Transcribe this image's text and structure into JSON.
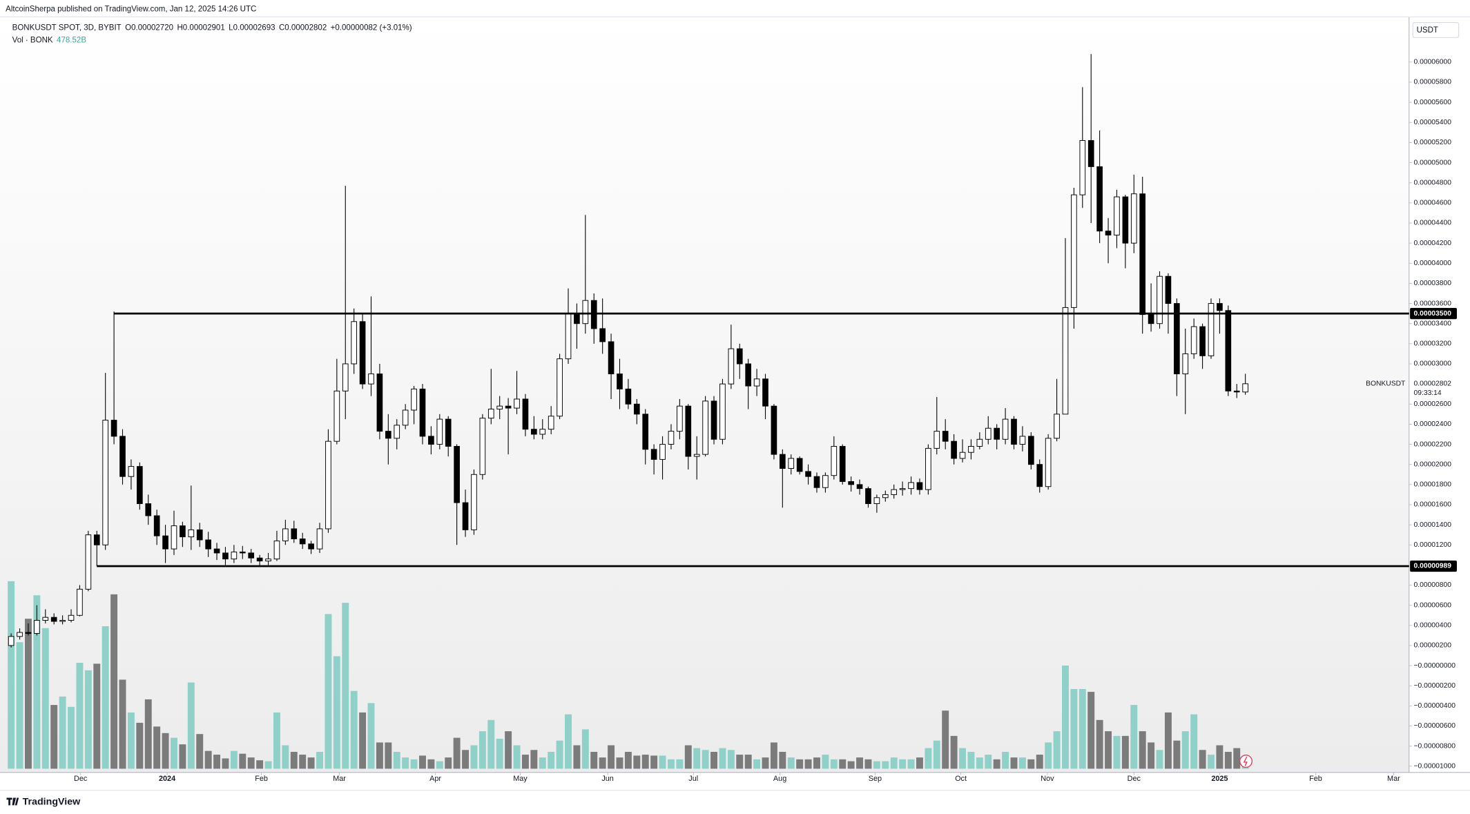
{
  "header": {
    "published": "AltcoinSherpa published on TradingView.com, Jan 12, 2025 14:26 UTC"
  },
  "chart_data": {
    "type": "candlestick",
    "symbol": "BONKUSDT SPOT, 3D, BYBIT",
    "ohlc_legend": [
      {
        "key": "O",
        "value": "0.00002720"
      },
      {
        "key": "H",
        "value": "0.00002901"
      },
      {
        "key": "L",
        "value": "0.00002693"
      },
      {
        "key": "C",
        "value": "0.00002802"
      }
    ],
    "change": "+0.00000082 (+3.01%)",
    "volume_legend": {
      "name": "Vol · BONK",
      "value_label": "478.52B"
    },
    "currency": "USDT",
    "last_price": {
      "symbol": "BONKUSDT",
      "label": "0.00002802",
      "countdown": "09:33:14"
    },
    "colors": {
      "up_body": "#ffffff",
      "down_body": "#000000",
      "wick": "#000000",
      "volume_up": "#8fd0c8",
      "volume_down": "#7b7b7b",
      "legend_value": "#3aa79d"
    },
    "xlim": [
      -1.3,
      163.1
    ],
    "xticks": [
      {
        "value": 8.1,
        "label": "Dec"
      },
      {
        "value": 18.2,
        "label": "2024"
      },
      {
        "value": 29.2,
        "label": "Feb"
      },
      {
        "value": 38.3,
        "label": "Mar"
      },
      {
        "value": 49.5,
        "label": "Apr"
      },
      {
        "value": 59.4,
        "label": "May"
      },
      {
        "value": 69.6,
        "label": "Jun"
      },
      {
        "value": 79.6,
        "label": "Jul"
      },
      {
        "value": 89.7,
        "label": "Aug"
      },
      {
        "value": 100.8,
        "label": "Sep"
      },
      {
        "value": 110.8,
        "label": "Oct"
      },
      {
        "value": 120.9,
        "label": "Nov"
      },
      {
        "value": 131.0,
        "label": "Dec"
      },
      {
        "value": 141.0,
        "label": "2025"
      },
      {
        "value": 152.2,
        "label": "Feb"
      },
      {
        "value": 161.3,
        "label": "Mar"
      }
    ],
    "ylim": [
      -1.062e-05,
      6.449e-05
    ],
    "yticks": [
      {
        "value": 6e-05,
        "label": "0.00006000"
      },
      {
        "value": 5.8e-05,
        "label": "0.00005800"
      },
      {
        "value": 5.6e-05,
        "label": "0.00005600"
      },
      {
        "value": 5.4e-05,
        "label": "0.00005400"
      },
      {
        "value": 5.2e-05,
        "label": "0.00005200"
      },
      {
        "value": 5e-05,
        "label": "0.00005000"
      },
      {
        "value": 4.8e-05,
        "label": "0.00004800"
      },
      {
        "value": 4.6e-05,
        "label": "0.00004600"
      },
      {
        "value": 4.4e-05,
        "label": "0.00004400"
      },
      {
        "value": 4.2e-05,
        "label": "0.00004200"
      },
      {
        "value": 4e-05,
        "label": "0.00004000"
      },
      {
        "value": 3.8e-05,
        "label": "0.00003800"
      },
      {
        "value": 3.6e-05,
        "label": "0.00003600"
      },
      {
        "value": 3.4e-05,
        "label": "0.00003400"
      },
      {
        "value": 3.2e-05,
        "label": "0.00003200"
      },
      {
        "value": 3e-05,
        "label": "0.00003000"
      },
      {
        "value": 2.6e-05,
        "label": "0.00002600"
      },
      {
        "value": 2.4e-05,
        "label": "0.00002400"
      },
      {
        "value": 2.2e-05,
        "label": "0.00002200"
      },
      {
        "value": 2e-05,
        "label": "0.00002000"
      },
      {
        "value": 1.8e-05,
        "label": "0.00001800"
      },
      {
        "value": 1.6e-05,
        "label": "0.00001600"
      },
      {
        "value": 1.4e-05,
        "label": "0.00001400"
      },
      {
        "value": 1.2e-05,
        "label": "0.00001200"
      },
      {
        "value": 8e-06,
        "label": "0.00000800"
      },
      {
        "value": 6e-06,
        "label": "0.00000600"
      },
      {
        "value": 4e-06,
        "label": "0.00000400"
      },
      {
        "value": 2e-06,
        "label": "0.00000200"
      },
      {
        "value": 0,
        "label": "−0.00000000"
      },
      {
        "value": -2e-06,
        "label": "−0.00000200"
      },
      {
        "value": -4e-06,
        "label": "−0.00000400"
      },
      {
        "value": -6e-06,
        "label": "−0.00000600"
      },
      {
        "value": -8e-06,
        "label": "−0.00000800"
      },
      {
        "value": -1e-05,
        "label": "−0.00001000"
      }
    ],
    "levels": [
      {
        "value": 3.5e-05,
        "label": "0.00003500",
        "start": 12
      },
      {
        "value": 9.89e-06,
        "label": "0.00000989",
        "start": 10
      }
    ],
    "open": [
      2e-06,
      2.9e-06,
      3.3e-06,
      3.2e-06,
      4.5e-06,
      4.8e-06,
      4.4e-06,
      4.5e-06,
      5e-06,
      7.6e-06,
      1.3e-05,
      1.2e-05,
      2.44e-05,
      2.28e-05,
      1.88e-05,
      1.98e-05,
      1.61e-05,
      1.49e-05,
      1.29e-05,
      1.16e-05,
      1.39e-05,
      1.28e-05,
      1.35e-05,
      1.25e-05,
      1.16e-05,
      1.12e-05,
      1.06e-05,
      1.13e-05,
      1.12e-05,
      1.07e-05,
      1.04e-05,
      1.06e-05,
      1.24e-05,
      1.36e-05,
      1.26e-05,
      1.21e-05,
      1.16e-05,
      1.36e-05,
      2.23e-05,
      2.73e-05,
      3e-05,
      3.42e-05,
      2.8e-05,
      2.9e-05,
      2.33e-05,
      2.26e-05,
      2.39e-05,
      2.54e-05,
      2.75e-05,
      2.28e-05,
      2.2e-05,
      2.45e-05,
      2.18e-05,
      1.62e-05,
      1.35e-05,
      1.9e-05,
      2.46e-05,
      2.55e-05,
      2.58e-05,
      2.56e-05,
      2.65e-05,
      2.35e-05,
      2.3e-05,
      2.35e-05,
      2.48e-05,
      3.05e-05,
      3.5e-05,
      3.4e-05,
      3.63e-05,
      3.35e-05,
      3.22e-05,
      2.9e-05,
      2.75e-05,
      2.6e-05,
      2.5e-05,
      2.15e-05,
      2.05e-05,
      2.2e-05,
      2.33e-05,
      2.58e-05,
      2.08e-05,
      2.1e-05,
      2.63e-05,
      2.25e-05,
      2.8e-05,
      3.15e-05,
      3e-05,
      2.78e-05,
      2.85e-05,
      2.58e-05,
      2.1e-05,
      1.96e-05,
      2.06e-05,
      1.93e-05,
      1.88e-05,
      1.77e-05,
      1.89e-05,
      2.18e-05,
      1.83e-05,
      1.8e-05,
      1.76e-05,
      1.61e-05,
      1.67e-05,
      1.7e-05,
      1.75e-05,
      1.76e-05,
      1.82e-05,
      1.75e-05,
      2.16e-05,
      2.33e-05,
      2.23e-05,
      2.06e-05,
      2.12e-05,
      2.18e-05,
      2.25e-05,
      2.36e-05,
      2.25e-05,
      2.45e-05,
      2.2e-05,
      2.28e-05,
      2e-05,
      1.78e-05,
      2.26e-05,
      2.5e-05,
      3.56e-05,
      4.68e-05,
      5.22e-05,
      4.96e-05,
      4.32e-05,
      4.28e-05,
      4.66e-05,
      4.2e-05,
      4.69e-05,
      3.49e-05,
      3.4e-05,
      3.87e-05,
      3.6e-05,
      2.9e-05,
      3.1e-05,
      3.37e-05,
      3.08e-05,
      3.6e-05,
      3.53e-05,
      2.73e-05,
      2.72e-05
    ],
    "high": [
      3.2e-06,
      3.7e-06,
      4.2e-06,
      6e-06,
      5.6e-06,
      5.2e-06,
      5e-06,
      5.6e-06,
      8e-06,
      1.34e-05,
      1.34e-05,
      2.91e-05,
      3.52e-05,
      2.35e-05,
      2.05e-05,
      2.02e-05,
      1.7e-05,
      1.55e-05,
      1.4e-05,
      1.54e-05,
      1.43e-05,
      1.79e-05,
      1.42e-05,
      1.33e-05,
      1.22e-05,
      1.18e-05,
      1.2e-05,
      1.19e-05,
      1.16e-05,
      1.1e-05,
      1.12e-05,
      1.34e-05,
      1.45e-05,
      1.44e-05,
      1.32e-05,
      1.24e-05,
      1.42e-05,
      2.35e-05,
      3.05e-05,
      4.77e-05,
      3.55e-05,
      3.5e-05,
      3.67e-05,
      3e-05,
      2.5e-05,
      2.45e-05,
      2.6e-05,
      2.78e-05,
      2.8e-05,
      2.38e-05,
      2.5e-05,
      2.48e-05,
      2.2e-05,
      1.75e-05,
      1.95e-05,
      2.5e-05,
      2.95e-05,
      2.68e-05,
      2.66e-05,
      2.93e-05,
      2.7e-05,
      2.48e-05,
      2.45e-05,
      2.58e-05,
      3.1e-05,
      3.75e-05,
      3.6e-05,
      4.48e-05,
      3.7e-05,
      3.65e-05,
      3.3e-05,
      3.05e-05,
      2.85e-05,
      2.65e-05,
      2.55e-05,
      2.2e-05,
      2.28e-05,
      2.4e-05,
      2.65e-05,
      2.6e-05,
      2.28e-05,
      2.68e-05,
      2.68e-05,
      2.85e-05,
      3.39e-05,
      3.2e-05,
      3.05e-05,
      2.95e-05,
      2.9e-05,
      2.6e-05,
      2.15e-05,
      2.1e-05,
      2.08e-05,
      2e-05,
      1.92e-05,
      1.92e-05,
      2.28e-05,
      2.2e-05,
      1.88e-05,
      1.85e-05,
      1.78e-05,
      1.7e-05,
      1.74e-05,
      1.8e-05,
      1.83e-05,
      1.88e-05,
      1.86e-05,
      2.2e-05,
      2.67e-05,
      2.45e-05,
      2.3e-05,
      2.25e-05,
      2.25e-05,
      2.32e-05,
      2.48e-05,
      2.4e-05,
      2.56e-05,
      2.48e-05,
      2.38e-05,
      2.32e-05,
      2.05e-05,
      2.3e-05,
      2.85e-05,
      4.25e-05,
      4.75e-05,
      5.75e-05,
      6.08e-05,
      5.32e-05,
      4.45e-05,
      4.73e-05,
      4.68e-05,
      4.88e-05,
      4.86e-05,
      3.8e-05,
      3.92e-05,
      3.9e-05,
      3.65e-05,
      3.35e-05,
      3.45e-05,
      3.4e-05,
      3.65e-05,
      3.65e-05,
      3.58e-05,
      2.8e-05,
      2.901e-05
    ],
    "low": [
      1.8e-06,
      2.6e-06,
      3e-06,
      3e-06,
      4.2e-06,
      4.1e-06,
      4.1e-06,
      4.3e-06,
      4.9e-06,
      7.4e-06,
      9.9e-06,
      1.15e-05,
      2.2e-05,
      1.8e-05,
      1.75e-05,
      1.55e-05,
      1.4e-05,
      1.2e-05,
      1.02e-05,
      1.1e-05,
      1.18e-05,
      1.15e-05,
      1.18e-05,
      1.08e-05,
      1.05e-05,
      1e-05,
      1.02e-05,
      1.06e-05,
      1.02e-05,
      9.9e-06,
      1e-05,
      1.04e-05,
      1.2e-05,
      1.22e-05,
      1.16e-05,
      1.11e-05,
      1.12e-05,
      1.32e-05,
      2.2e-05,
      2.45e-05,
      2.9e-05,
      2.75e-05,
      2.68e-05,
      2.25e-05,
      2e-05,
      2.15e-05,
      2.35e-05,
      2.4e-05,
      2.2e-05,
      2.1e-05,
      2.15e-05,
      2.08e-05,
      1.2e-05,
      1.28e-05,
      1.3e-05,
      1.85e-05,
      2.4e-05,
      2.45e-05,
      2.1e-05,
      2.5e-05,
      2.28e-05,
      2.25e-05,
      2.25e-05,
      2.3e-05,
      2.45e-05,
      3e-05,
      3.15e-05,
      3.3e-05,
      3.2e-05,
      3.1e-05,
      2.65e-05,
      2.55e-05,
      2.55e-05,
      2.4e-05,
      2e-05,
      1.9e-05,
      1.85e-05,
      2.15e-05,
      2.25e-05,
      1.95e-05,
      1.85e-05,
      2.08e-05,
      2.2e-05,
      2.2e-05,
      2.75e-05,
      2.85e-05,
      2.55e-05,
      2.68e-05,
      2.45e-05,
      2.05e-05,
      1.57e-05,
      1.9e-05,
      1.9e-05,
      1.8e-05,
      1.72e-05,
      1.72e-05,
      1.85e-05,
      1.8e-05,
      1.73e-05,
      1.7e-05,
      1.57e-05,
      1.52e-05,
      1.63e-05,
      1.66e-05,
      1.69e-05,
      1.7e-05,
      1.7e-05,
      1.7e-05,
      2.1e-05,
      2.15e-05,
      2e-05,
      2.02e-05,
      2.05e-05,
      2.15e-05,
      2.2e-05,
      2.15e-05,
      2.2e-05,
      2.15e-05,
      2.13e-05,
      1.95e-05,
      1.72e-05,
      1.75e-05,
      2.23e-05,
      2.5e-05,
      3.35e-05,
      4.55e-05,
      4.4e-05,
      4.2e-05,
      4e-05,
      4.15e-05,
      3.95e-05,
      4.1e-05,
      3.3e-05,
      3.32e-05,
      3.35e-05,
      3.3e-05,
      2.68e-05,
      2.5e-05,
      3.05e-05,
      2.95e-05,
      3.05e-05,
      3.3e-05,
      2.68e-05,
      2.66e-05,
      2.693e-05
    ],
    "close": [
      2.9e-06,
      3.3e-06,
      3.2e-06,
      4.5e-06,
      4.8e-06,
      4.4e-06,
      4.5e-06,
      5e-06,
      7.6e-06,
      1.3e-05,
      1.2e-05,
      2.44e-05,
      2.28e-05,
      1.88e-05,
      1.98e-05,
      1.61e-05,
      1.49e-05,
      1.29e-05,
      1.16e-05,
      1.39e-05,
      1.28e-05,
      1.35e-05,
      1.25e-05,
      1.16e-05,
      1.12e-05,
      1.06e-05,
      1.13e-05,
      1.12e-05,
      1.07e-05,
      1.04e-05,
      1.06e-05,
      1.24e-05,
      1.36e-05,
      1.26e-05,
      1.21e-05,
      1.16e-05,
      1.36e-05,
      2.23e-05,
      2.73e-05,
      3e-05,
      3.42e-05,
      2.8e-05,
      2.9e-05,
      2.33e-05,
      2.26e-05,
      2.39e-05,
      2.54e-05,
      2.75e-05,
      2.28e-05,
      2.2e-05,
      2.45e-05,
      2.18e-05,
      1.62e-05,
      1.35e-05,
      1.9e-05,
      2.46e-05,
      2.55e-05,
      2.58e-05,
      2.56e-05,
      2.65e-05,
      2.35e-05,
      2.3e-05,
      2.35e-05,
      2.48e-05,
      3.05e-05,
      3.5e-05,
      3.4e-05,
      3.63e-05,
      3.35e-05,
      3.22e-05,
      2.9e-05,
      2.75e-05,
      2.6e-05,
      2.5e-05,
      2.15e-05,
      2.05e-05,
      2.2e-05,
      2.33e-05,
      2.58e-05,
      2.08e-05,
      2.1e-05,
      2.63e-05,
      2.25e-05,
      2.8e-05,
      3.15e-05,
      3e-05,
      2.78e-05,
      2.85e-05,
      2.58e-05,
      2.1e-05,
      1.96e-05,
      2.06e-05,
      1.93e-05,
      1.88e-05,
      1.77e-05,
      1.89e-05,
      2.18e-05,
      1.83e-05,
      1.8e-05,
      1.76e-05,
      1.61e-05,
      1.67e-05,
      1.7e-05,
      1.75e-05,
      1.76e-05,
      1.82e-05,
      1.75e-05,
      2.16e-05,
      2.33e-05,
      2.23e-05,
      2.06e-05,
      2.12e-05,
      2.18e-05,
      2.25e-05,
      2.36e-05,
      2.25e-05,
      2.45e-05,
      2.2e-05,
      2.28e-05,
      2e-05,
      1.78e-05,
      2.26e-05,
      2.5e-05,
      3.56e-05,
      4.68e-05,
      5.22e-05,
      4.96e-05,
      4.32e-05,
      4.28e-05,
      4.66e-05,
      4.2e-05,
      4.69e-05,
      3.49e-05,
      3.4e-05,
      3.87e-05,
      3.6e-05,
      2.9e-05,
      3.1e-05,
      3.37e-05,
      3.08e-05,
      3.6e-05,
      3.53e-05,
      2.73e-05,
      2.72e-05,
      2.802e-05
    ],
    "volume_ylim": [
      0,
      21500000000000.0
    ],
    "volume": [
      20000000000000.0,
      13500000000000.0,
      16000000000000.0,
      18500000000000.0,
      15000000000000.0,
      6800000000000.0,
      7700000000000.0,
      6600000000000.0,
      11300000000000.0,
      10500000000000.0,
      11200000000000.0,
      15200000000000.0,
      18600000000000.0,
      9500000000000.0,
      6000000000000.0,
      4900000000000.0,
      7400000000000.0,
      4500000000000.0,
      3800000000000.0,
      3300000000000.0,
      2600000000000.0,
      9200000000000.0,
      3700000000000.0,
      1900000000000.0,
      1500000000000.0,
      1100000000000.0,
      1900000000000.0,
      1600000000000.0,
      1200000000000.0,
      900000000000.0,
      800000000000.0,
      6000000000000.0,
      2500000000000.0,
      1800000000000.0,
      1500000000000.0,
      1200000000000.0,
      1800000000000.0,
      16500000000000.0,
      12000000000000.0,
      17700000000000.0,
      8300000000000.0,
      6000000000000.0,
      7000000000000.0,
      2800000000000.0,
      2800000000000.0,
      1800000000000.0,
      1200000000000.0,
      1000000000000.0,
      1400000000000.0,
      1000000000000.0,
      800000000000.0,
      1200000000000.0,
      3300000000000.0,
      2000000000000.0,
      2500000000000.0,
      4000000000000.0,
      5200000000000.0,
      3200000000000.0,
      4000000000000.0,
      2500000000000.0,
      1500000000000.0,
      2000000000000.0,
      1200000000000.0,
      1800000000000.0,
      3000000000000.0,
      5800000000000.0,
      2500000000000.0,
      4200000000000.0,
      1800000000000.0,
      1200000000000.0,
      2500000000000.0,
      1200000000000.0,
      1800000000000.0,
      1400000000000.0,
      1500000000000.0,
      1400000000000.0,
      1400000000000.0,
      1000000000000.0,
      1000000000000.0,
      2500000000000.0,
      2200000000000.0,
      2000000000000.0,
      1800000000000.0,
      2200000000000.0,
      2000000000000.0,
      1500000000000.0,
      1500000000000.0,
      1000000000000.0,
      1200000000000.0,
      2800000000000.0,
      1800000000000.0,
      1200000000000.0,
      1000000000000.0,
      1000000000000.0,
      1200000000000.0,
      1500000000000.0,
      1000000000000.0,
      1000000000000.0,
      800000000000.0,
      1200000000000.0,
      1000000000000.0,
      800000000000.0,
      800000000000.0,
      1200000000000.0,
      1000000000000.0,
      1000000000000.0,
      1200000000000.0,
      2200000000000.0,
      3000000000000.0,
      6200000000000.0,
      3500000000000.0,
      2200000000000.0,
      1800000000000.0,
      1200000000000.0,
      1500000000000.0,
      1000000000000.0,
      1800000000000.0,
      1200000000000.0,
      1200000000000.0,
      1000000000000.0,
      1500000000000.0,
      2800000000000.0,
      4000000000000.0,
      11000000000000.0,
      8500000000000.0,
      8500000000000.0,
      8200000000000.0,
      5200000000000.0,
      4000000000000.0,
      3500000000000.0,
      3500000000000.0,
      6800000000000.0,
      4000000000000.0,
      2800000000000.0,
      2000000000000.0,
      6000000000000.0,
      3000000000000.0,
      4000000000000.0,
      5800000000000.0,
      2000000000000.0,
      1500000000000.0,
      2500000000000.0,
      1800000000000.0,
      2200000000000.0,
      478520000000.0
    ]
  },
  "footer": {
    "brand": "TradingView"
  }
}
